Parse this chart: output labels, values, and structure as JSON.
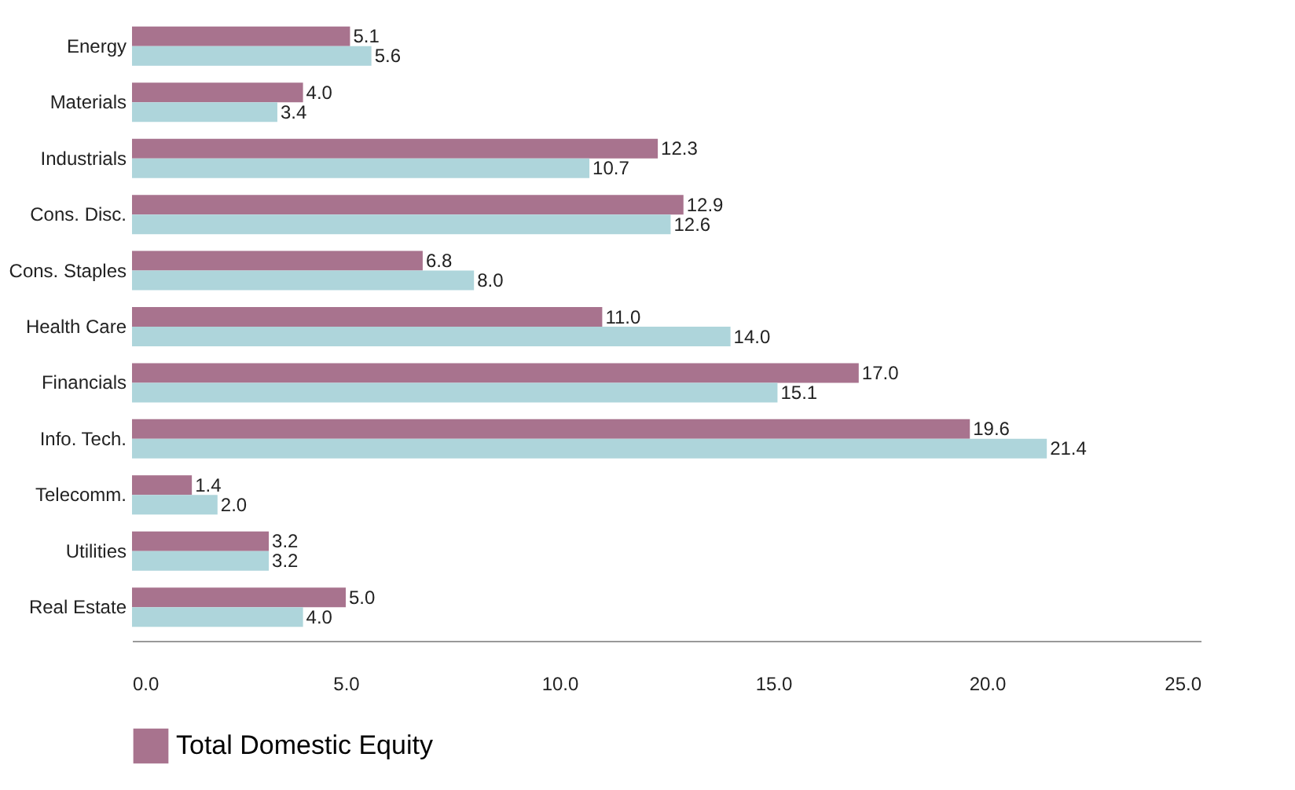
{
  "chart_data": {
    "type": "bar",
    "orientation": "horizontal",
    "categories": [
      "Energy",
      "Materials",
      "Industrials",
      "Cons. Disc.",
      "Cons. Staples",
      "Health Care",
      "Financials",
      "Info. Tech.",
      "Telecomm.",
      "Utilities",
      "Real Estate"
    ],
    "series": [
      {
        "name": "Total Domestic Equity",
        "color": "#a8738e",
        "values": [
          5.1,
          4.0,
          12.3,
          12.9,
          6.8,
          11.0,
          17.0,
          19.6,
          1.4,
          3.2,
          5.0
        ],
        "value_labels": [
          "5.1",
          "4.0",
          "12.3",
          "12.9",
          "6.8",
          "11.0",
          "17.0",
          "19.6",
          "1.4",
          "3.2",
          "5.0"
        ]
      },
      {
        "color": "#aed5db",
        "values": [
          5.6,
          3.4,
          10.7,
          12.6,
          8.0,
          14.0,
          15.1,
          21.4,
          2.0,
          3.2,
          4.0
        ],
        "value_labels": [
          "5.6",
          "3.4",
          "10.7",
          "12.6",
          "8.0",
          "14.0",
          "15.1",
          "21.4",
          "2.0",
          "3.2",
          "4.0"
        ]
      }
    ],
    "xlim": [
      0,
      25
    ],
    "xticks": [
      {
        "value": 0,
        "label": "0.0"
      },
      {
        "value": 5,
        "label": "5.0"
      },
      {
        "value": 10,
        "label": "10.0"
      },
      {
        "value": 15,
        "label": "15.0"
      },
      {
        "value": 20,
        "label": "20.0"
      },
      {
        "value": 25,
        "label": "25.0"
      }
    ],
    "grid": false,
    "legend": "bottom"
  }
}
